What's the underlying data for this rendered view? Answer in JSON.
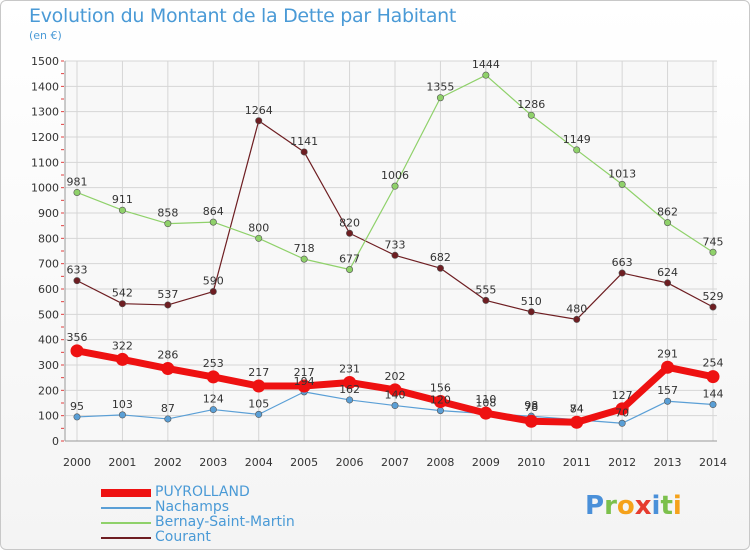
{
  "chart_data": {
    "type": "line",
    "title": "Evolution du Montant de la Dette par Habitant",
    "subtitle": "(en €)",
    "x": [
      "2000",
      "2001",
      "2002",
      "2003",
      "2004",
      "2005",
      "2006",
      "2007",
      "2008",
      "2009",
      "2010",
      "2011",
      "2012",
      "2013",
      "2014"
    ],
    "ylim": [
      0,
      1500
    ],
    "yticks": [
      0,
      100,
      200,
      300,
      400,
      500,
      600,
      700,
      800,
      900,
      1000,
      1100,
      1200,
      1300,
      1400,
      1500
    ],
    "grid": true,
    "series": [
      {
        "name": "Courant",
        "color": "#6e1e22",
        "values": [
          633,
          542,
          537,
          590,
          1264,
          1141,
          820,
          733,
          682,
          555,
          510,
          480,
          663,
          624,
          529
        ]
      },
      {
        "name": "Bernay-Saint-Martin",
        "color": "#8fd16a",
        "values": [
          981,
          911,
          858,
          864,
          800,
          718,
          677,
          1006,
          1355,
          1444,
          1286,
          1149,
          1013,
          862,
          745
        ]
      },
      {
        "name": "Nachamps",
        "color": "#5a9fd6",
        "values": [
          95,
          103,
          87,
          124,
          105,
          194,
          162,
          140,
          120,
          108,
          98,
          84,
          70,
          157,
          144
        ]
      },
      {
        "name": "PUYROLLAND",
        "color": "#ee1111",
        "values": [
          356,
          322,
          286,
          253,
          217,
          217,
          231,
          202,
          156,
          110,
          78,
          74,
          127,
          291,
          254
        ]
      }
    ]
  },
  "legend": {
    "items": [
      {
        "name": "PUYROLLAND",
        "color": "#ee1111",
        "width": 8
      },
      {
        "name": "Nachamps",
        "color": "#5a9fd6",
        "width": 2
      },
      {
        "name": "Bernay-Saint-Martin",
        "color": "#8fd16a",
        "width": 2
      },
      {
        "name": "Courant",
        "color": "#6e1e22",
        "width": 2
      }
    ]
  },
  "logo": {
    "letters": [
      "P",
      "r",
      "o",
      "x",
      "i",
      "t",
      "i"
    ],
    "colors": [
      "#4a90d9",
      "#7cc04c",
      "#f5a21b",
      "#e63c2f",
      "#4a90d9",
      "#7cc04c",
      "#f5a21b"
    ]
  }
}
